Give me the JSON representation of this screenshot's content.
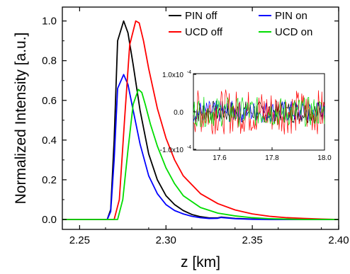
{
  "chart_data": [
    {
      "type": "line",
      "title": "",
      "xlabel": "z [km]",
      "ylabel": "Normalized Intensity  [a.u.]",
      "xlim": [
        2.24,
        2.4
      ],
      "ylim": [
        -0.05,
        1.07
      ],
      "xticks": [
        2.25,
        2.3,
        2.35,
        2.4
      ],
      "xtick_labels": [
        "2.25",
        "2.30",
        "2.35",
        "2.40"
      ],
      "yticks": [
        0.0,
        0.2,
        0.4,
        0.6,
        0.8,
        1.0
      ],
      "ytick_labels": [
        "0.0",
        "0.2",
        "0.4",
        "0.6",
        "0.8",
        "1.0"
      ],
      "grid": false,
      "legend_position": "top-right",
      "series": [
        {
          "name": "PIN off",
          "color": "#000000",
          "x": [
            2.24,
            2.266,
            2.268,
            2.27,
            2.272,
            2.2755,
            2.278,
            2.281,
            2.285,
            2.29,
            2.295,
            2.3,
            2.305,
            2.31,
            2.315,
            2.32,
            2.325,
            2.33,
            2.332,
            2.34,
            2.35,
            2.36,
            2.38,
            2.4
          ],
          "y": [
            0.0,
            0.0,
            0.05,
            0.4,
            0.9,
            1.0,
            0.94,
            0.78,
            0.55,
            0.33,
            0.2,
            0.12,
            0.075,
            0.045,
            0.025,
            0.014,
            0.008,
            0.008,
            0.012,
            0.005,
            0.002,
            0.001,
            0.0,
            0.0
          ]
        },
        {
          "name": "PIN on",
          "color": "#0000ff",
          "x": [
            2.24,
            2.266,
            2.268,
            2.27,
            2.272,
            2.2755,
            2.278,
            2.281,
            2.285,
            2.29,
            2.295,
            2.3,
            2.305,
            2.31,
            2.315,
            2.32,
            2.325,
            2.33,
            2.332,
            2.34,
            2.35,
            2.36,
            2.38,
            2.4
          ],
          "y": [
            0.0,
            0.0,
            0.04,
            0.3,
            0.66,
            0.73,
            0.68,
            0.55,
            0.38,
            0.22,
            0.13,
            0.075,
            0.045,
            0.028,
            0.016,
            0.009,
            0.005,
            0.006,
            0.01,
            0.004,
            0.001,
            0.0,
            0.0,
            0.0
          ]
        },
        {
          "name": "UCD off",
          "color": "#ff0000",
          "x": [
            2.24,
            2.27,
            2.273,
            2.276,
            2.279,
            2.2825,
            2.2845,
            2.287,
            2.29,
            2.295,
            2.3,
            2.305,
            2.31,
            2.32,
            2.33,
            2.34,
            2.35,
            2.36,
            2.37,
            2.38,
            2.39,
            2.4
          ],
          "y": [
            0.0,
            0.0,
            0.1,
            0.5,
            0.88,
            1.0,
            0.99,
            0.9,
            0.76,
            0.56,
            0.41,
            0.3,
            0.22,
            0.13,
            0.08,
            0.048,
            0.028,
            0.016,
            0.009,
            0.005,
            0.002,
            0.0
          ]
        },
        {
          "name": "UCD on",
          "color": "#00dd00",
          "x": [
            2.24,
            2.272,
            2.275,
            2.278,
            2.281,
            2.284,
            2.286,
            2.288,
            2.291,
            2.295,
            2.3,
            2.305,
            2.31,
            2.32,
            2.33,
            2.34,
            2.35,
            2.36,
            2.37,
            2.38,
            2.4
          ],
          "y": [
            0.0,
            0.0,
            0.1,
            0.35,
            0.58,
            0.655,
            0.64,
            0.58,
            0.48,
            0.37,
            0.26,
            0.18,
            0.12,
            0.06,
            0.032,
            0.018,
            0.009,
            0.004,
            0.002,
            0.0,
            0.0
          ]
        }
      ]
    },
    {
      "type": "line",
      "title": "",
      "xlabel": "",
      "ylabel": "",
      "xlim": [
        17.5,
        18.0
      ],
      "ylim": [
        -0.0001,
        0.0001
      ],
      "xticks": [
        17.6,
        17.8,
        18.0
      ],
      "xtick_labels": [
        "17.6",
        "17.8",
        "18.0"
      ],
      "yticks": [
        0.0001,
        0.0,
        -0.0001
      ],
      "ytick_labels": [
        "1.0x10",
        "0.0",
        "-1.0x10"
      ],
      "ytick_exponents": [
        "-4",
        "",
        "-4"
      ],
      "grid": false,
      "note": "inset: noise residuals for all four series",
      "series": [
        {
          "name": "PIN off",
          "color": "#000000",
          "noise_amplitude": 3e-05
        },
        {
          "name": "PIN on",
          "color": "#0000ff",
          "noise_amplitude": 3e-05
        },
        {
          "name": "UCD off",
          "color": "#ff0000",
          "noise_amplitude": 6e-05
        },
        {
          "name": "UCD on",
          "color": "#00dd00",
          "noise_amplitude": 4e-05
        }
      ]
    }
  ]
}
